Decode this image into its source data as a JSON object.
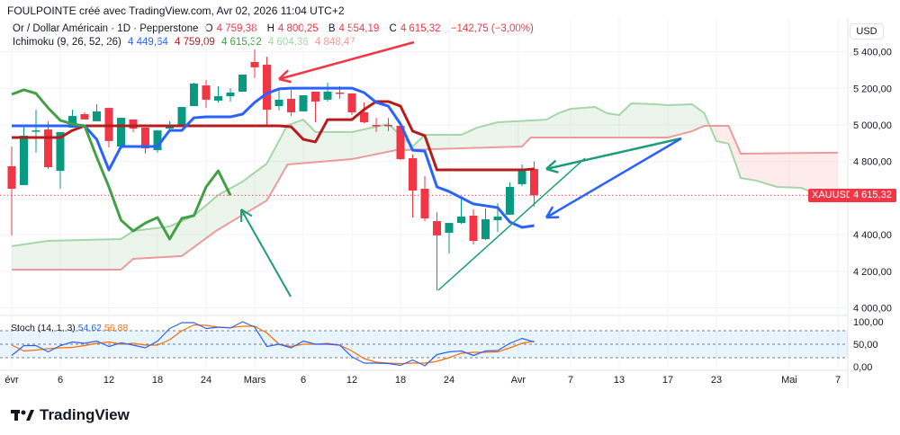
{
  "header": {
    "title": "FOULPOINTE créé avec TradingView.com, Avr 02, 2026 11:04 UTC+2"
  },
  "legend": {
    "symbol": "Or / Dollar Américain · 1D · Pepperstone",
    "o_label": "O",
    "o_value": "4 759,38",
    "h_label": "H",
    "h_value": "4 800,25",
    "b_label": "B",
    "b_value": "4 554,19",
    "c_label": "C",
    "c_value": "4 615,32",
    "change": "−142,75 (−3,00%)",
    "ichimoku_label": "Ichimoku (9, 26, 52, 26)",
    "ichimoku_values": [
      "4 449,64",
      "4 759,09",
      "4 615,32",
      "4 604,36",
      "4 848,47"
    ]
  },
  "price_axis": {
    "currency": "USD",
    "ticks": [
      {
        "v": 5400,
        "label": "5 400,00"
      },
      {
        "v": 5200,
        "label": "5 200,00"
      },
      {
        "v": 5000,
        "label": "5 000,00"
      },
      {
        "v": 4800,
        "label": "4 800,00"
      },
      {
        "v": 4400,
        "label": "4 400,00"
      },
      {
        "v": 4200,
        "label": "4 200,00"
      },
      {
        "v": 4000,
        "label": "4 000,00"
      }
    ]
  },
  "price_tag": {
    "symbol": "XAUUSD",
    "value": "4 615,32",
    "price": 4615.32
  },
  "time_axis": [
    {
      "i": 0,
      "label": "évr"
    },
    {
      "i": 4,
      "label": "6"
    },
    {
      "i": 8,
      "label": "12"
    },
    {
      "i": 12,
      "label": "18"
    },
    {
      "i": 16,
      "label": "24"
    },
    {
      "i": 20,
      "label": "Mars"
    },
    {
      "i": 24,
      "label": "6"
    },
    {
      "i": 28,
      "label": "12"
    },
    {
      "i": 32,
      "label": "18"
    },
    {
      "i": 36,
      "label": "24"
    },
    {
      "i": 41.7,
      "label": "Avr"
    },
    {
      "i": 46,
      "label": "7"
    },
    {
      "i": 50,
      "label": "13"
    },
    {
      "i": 54,
      "label": "17"
    },
    {
      "i": 58,
      "label": "23"
    },
    {
      "i": 64,
      "label": "Mai"
    },
    {
      "i": 68,
      "label": "7"
    }
  ],
  "stoch": {
    "label": "Stoch (14, 1, 3)",
    "k_value": "54,62",
    "d_value": "56,88",
    "ticks": [
      {
        "v": 100,
        "label": "100,00"
      },
      {
        "v": 50,
        "label": "50,00"
      },
      {
        "v": 0,
        "label": "0,00"
      }
    ],
    "bands": [
      80,
      50,
      20
    ],
    "k": [
      25,
      47,
      47,
      33,
      47,
      55,
      52,
      57,
      45,
      53,
      48,
      42,
      57,
      85,
      98,
      98,
      85,
      88,
      86,
      100,
      88,
      45,
      50,
      42,
      57,
      50,
      50,
      48,
      22,
      8,
      8,
      7,
      3,
      15,
      2,
      27,
      33,
      35,
      25,
      35,
      36,
      52,
      63,
      55
    ],
    "d": [
      48,
      35,
      37,
      40,
      42,
      43,
      47,
      52,
      55,
      50,
      52,
      48,
      48,
      60,
      80,
      93,
      92,
      88,
      87,
      90,
      90,
      75,
      50,
      45,
      50,
      50,
      52,
      48,
      35,
      18,
      10,
      8,
      7,
      8,
      8,
      12,
      20,
      30,
      32,
      32,
      33,
      42,
      52,
      57
    ]
  },
  "colors": {
    "up": "#089981",
    "down": "#f23645",
    "tenkan": "#2962ff",
    "kijun": "#b71c1c",
    "chikou": "#43a047",
    "spanA": "#a5d6a7",
    "spanB": "#ef9a9a",
    "stochK": "#2962ff",
    "stochD": "#ff6d00"
  },
  "chart_data": {
    "type": "candlestick",
    "candles": [
      [
        4774,
        4882,
        4396,
        4651
      ],
      [
        4671,
        4995,
        4671,
        4941
      ],
      [
        4965,
        5083,
        4848,
        4970
      ],
      [
        4975,
        5020,
        4759,
        4769
      ],
      [
        4749,
        4961,
        4651,
        4961
      ],
      [
        4985,
        5083,
        4985,
        5049
      ],
      [
        5059,
        5069,
        5030,
        5030
      ],
      [
        5020,
        5113,
        5020,
        5074
      ],
      [
        5093,
        5093,
        4877,
        4912
      ],
      [
        4882,
        5039,
        4867,
        5039
      ],
      [
        5030,
        5030,
        4961,
        4980
      ],
      [
        4985,
        4985,
        4843,
        4872
      ],
      [
        4862,
        4970,
        4848,
        4970
      ],
      [
        4980,
        5020,
        4966,
        4990
      ],
      [
        4995,
        5098,
        4995,
        5098
      ],
      [
        5103,
        5231,
        5103,
        5226
      ],
      [
        5216,
        5246,
        5093,
        5138
      ],
      [
        5133,
        5211,
        5123,
        5157
      ],
      [
        5157,
        5201,
        5128,
        5177
      ],
      [
        5182,
        5275,
        5182,
        5275
      ],
      [
        5344,
        5413,
        5256,
        5315
      ],
      [
        5329,
        5373,
        5000,
        5083
      ],
      [
        5103,
        5192,
        5079,
        5138
      ],
      [
        5143,
        5192,
        5049,
        5069
      ],
      [
        5074,
        5162,
        5074,
        5162
      ],
      [
        5182,
        5182,
        5015,
        5128
      ],
      [
        5138,
        5231,
        5128,
        5182
      ],
      [
        5177,
        5211,
        5143,
        5172
      ],
      [
        5172,
        5172,
        5054,
        5069
      ],
      [
        5069,
        5123,
        5010,
        5015
      ],
      [
        5000,
        5039,
        4961,
        4995
      ],
      [
        5000,
        5039,
        4966,
        4995
      ],
      [
        4995,
        5000,
        4808,
        4813
      ],
      [
        4818,
        4838,
        4494,
        4641
      ],
      [
        4651,
        4720,
        4474,
        4489
      ],
      [
        4474,
        4523,
        4096,
        4396
      ],
      [
        4410,
        4464,
        4297,
        4464
      ],
      [
        4464,
        4597,
        4459,
        4499
      ],
      [
        4504,
        4538,
        4346,
        4366
      ],
      [
        4376,
        4543,
        4371,
        4484
      ],
      [
        4479,
        4572,
        4415,
        4499
      ],
      [
        4509,
        4686,
        4509,
        4661
      ],
      [
        4676,
        4784,
        4666,
        4759
      ],
      [
        4759.38,
        4800.25,
        4554.19,
        4615.32
      ]
    ],
    "tenkan": [
      4995,
      4995,
      4995,
      4995,
      4995,
      4995,
      4995,
      4921,
      4754,
      4882,
      4882,
      4882,
      4882,
      4970,
      4970,
      5039,
      5044,
      5044,
      5044,
      5059,
      5123,
      5172,
      5197,
      5201,
      5201,
      5201,
      5201,
      5201,
      5201,
      5177,
      5123,
      5103,
      5005,
      4862,
      4857,
      4661,
      4636,
      4602,
      4568,
      4558,
      4548,
      4469,
      4440,
      4449.64
    ],
    "kijun": [
      4931,
      4931,
      4931,
      4931,
      4931,
      4970,
      4995,
      4995,
      4995,
      4995,
      4995,
      4995,
      4995,
      4995,
      4995,
      4995,
      4995,
      4995,
      4995,
      4995,
      4995,
      4995,
      4995,
      4990,
      4921,
      4907,
      5029,
      5029,
      5029,
      5084,
      5128,
      5128,
      5103,
      4966,
      4941,
      4754,
      4754,
      4754,
      4754,
      4754,
      4754,
      4754,
      4754,
      4759.09
    ],
    "chikou": [
      5167,
      5192,
      5172,
      5093,
      5025,
      5005,
      4995,
      4823,
      4661,
      4479,
      4420,
      4464,
      4494,
      4376,
      4489,
      4504,
      4661,
      4749,
      4615.32
    ],
    "spanA": [
      [
        0,
        4337
      ],
      [
        3,
        4366
      ],
      [
        9,
        4376
      ],
      [
        10,
        4420
      ],
      [
        13,
        4445
      ],
      [
        15,
        4504
      ],
      [
        17,
        4617
      ],
      [
        19,
        4690
      ],
      [
        21,
        4789
      ],
      [
        22.7,
        5000
      ],
      [
        23,
        5005
      ],
      [
        24,
        5029
      ],
      [
        25,
        4961
      ],
      [
        28,
        4961
      ],
      [
        31,
        5005
      ],
      [
        33,
        4882
      ],
      [
        34,
        4946
      ],
      [
        37,
        4946
      ],
      [
        38.3,
        4985
      ],
      [
        40,
        5015
      ],
      [
        44,
        5029
      ],
      [
        45,
        5064
      ],
      [
        46,
        5088
      ],
      [
        48,
        5098
      ],
      [
        49,
        5064
      ],
      [
        50,
        5054
      ],
      [
        51,
        5118
      ],
      [
        53,
        5113
      ],
      [
        54,
        5108
      ],
      [
        56,
        5113
      ],
      [
        57,
        5064
      ],
      [
        58,
        4912
      ],
      [
        59,
        4897
      ],
      [
        60,
        4710
      ],
      [
        61.3,
        4695
      ],
      [
        63,
        4661
      ],
      [
        65,
        4656
      ],
      [
        66,
        4627
      ],
      [
        68,
        4604.36
      ]
    ],
    "spanB": [
      [
        0,
        4209
      ],
      [
        9,
        4209
      ],
      [
        10,
        4268
      ],
      [
        14,
        4283
      ],
      [
        16.8,
        4420
      ],
      [
        21,
        4587
      ],
      [
        22.7,
        4784
      ],
      [
        28,
        4813
      ],
      [
        31.6,
        4862
      ],
      [
        42,
        4882
      ],
      [
        42.7,
        4931
      ],
      [
        54,
        4931
      ],
      [
        56,
        4966
      ],
      [
        57,
        4995
      ],
      [
        59,
        4995
      ],
      [
        60,
        4843
      ],
      [
        68,
        4848.47
      ]
    ],
    "ylim": [
      4000,
      5450
    ]
  },
  "branding": {
    "logo": "TradingView"
  }
}
